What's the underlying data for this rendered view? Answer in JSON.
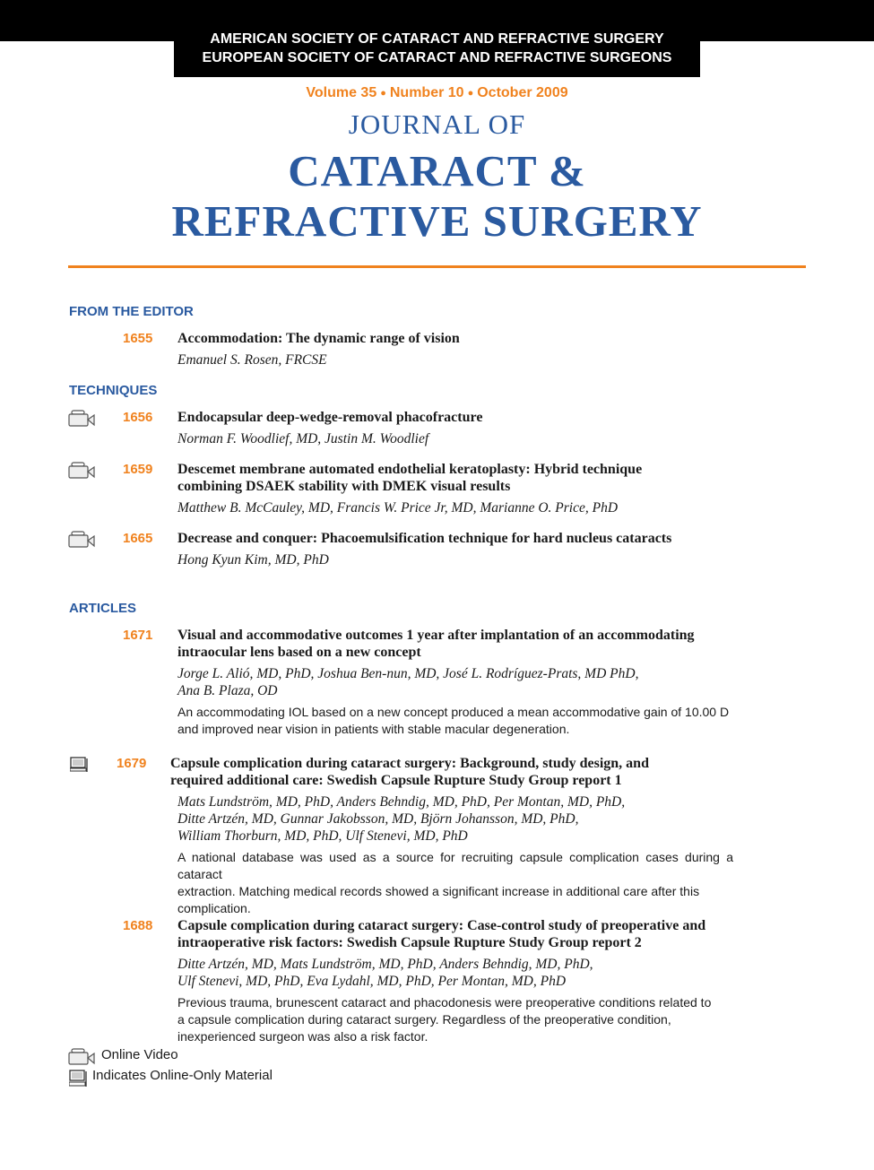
{
  "header": {
    "society_line_1": "AMERICAN SOCIETY OF CATARACT AND REFRACTIVE SURGERY",
    "society_line_2": "EUROPEAN SOCIETY OF CATARACT AND REFRACTIVE SURGEONS",
    "volume": "Volume 35",
    "number": "Number 10",
    "date": "October 2009",
    "journal_of": "JOURNAL OF",
    "title_line_1": "CATARACT &",
    "title_line_2": "REFRACTIVE SURGERY",
    "accent_color": "#f0821e",
    "title_color": "#2a5aa0"
  },
  "sections": {
    "editor": "FROM THE EDITOR",
    "techniques": "TECHNIQUES",
    "articles": "ARTICLES"
  },
  "editor": [
    {
      "page": "1655",
      "title": "Accommodation: The dynamic range of vision",
      "authors": "Emanuel S. Rosen, FRCSE"
    }
  ],
  "techniques": [
    {
      "page": "1656",
      "icon": "video-camera-icon",
      "title": "Endocapsular deep-wedge-removal phacofracture",
      "authors": "Norman F. Woodlief, MD, Justin M. Woodlief"
    },
    {
      "page": "1659",
      "icon": "video-camera-icon",
      "title_1": "Descemet membrane automated endothelial keratoplasty: Hybrid technique",
      "title_2": "combining DSAEK stability with DMEK visual results",
      "authors": "Matthew B. McCauley, MD, Francis W. Price Jr, MD, Marianne O. Price, PhD"
    },
    {
      "page": "1665",
      "icon": "video-camera-icon",
      "title": "Decrease and conquer: Phacoemulsification technique for hard nucleus cataracts",
      "authors": "Hong Kyun Kim, MD, PhD"
    }
  ],
  "articles": [
    {
      "page": "1671",
      "title_1": "Visual and accommodative outcomes 1 year after implantation of an accommodating",
      "title_2": "intraocular lens based on a new concept",
      "authors_1": "Jorge L. Alió, MD, PhD, Joshua Ben-nun, MD, José L. Rodríguez-Prats, MD PhD,",
      "authors_2": "Ana B. Plaza, OD",
      "abstract_1": "An accommodating IOL based on a new concept produced a mean accommodative gain of 10.00 D",
      "abstract_2": "and improved near vision in patients with stable macular degeneration."
    },
    {
      "page": "1679",
      "icon": "computer-icon",
      "title_1": "Capsule complication during cataract surgery: Background, study design, and",
      "title_2": "required additional care: Swedish Capsule Rupture Study Group report 1",
      "authors_1": "Mats Lundström, MD, PhD, Anders Behndig, MD, PhD, Per Montan, MD, PhD,",
      "authors_2": "Ditte Artzén, MD, Gunnar Jakobsson, MD, Björn Johansson, MD, PhD,",
      "authors_3": "William Thorburn, MD, PhD, Ulf Stenevi, MD, PhD",
      "abstract_1": "A national database was used as a source for recruiting capsule complication cases during a cataract",
      "abstract_2": "extraction. Matching medical records showed a significant increase in additional care after this",
      "abstract_3": "complication."
    },
    {
      "page": "1688",
      "title_1": "Capsule complication during cataract surgery: Case-control study of preoperative and",
      "title_2": "intraoperative risk factors: Swedish Capsule Rupture Study Group report 2",
      "authors_1": "Ditte Artzén, MD, Mats Lundström, MD, PhD, Anders Behndig, MD, PhD,",
      "authors_2": "Ulf Stenevi, MD, PhD, Eva Lydahl, MD, PhD, Per Montan, MD, PhD",
      "abstract_1": "Previous trauma, brunescent cataract and phacodonesis were preoperative conditions related to",
      "abstract_2": "a capsule complication during cataract surgery. Regardless of the preoperative condition,",
      "abstract_3": "inexperienced surgeon was also a risk factor."
    }
  ],
  "legend": {
    "video": "Online Video",
    "online_only": "Indicates Online-Only Material"
  }
}
